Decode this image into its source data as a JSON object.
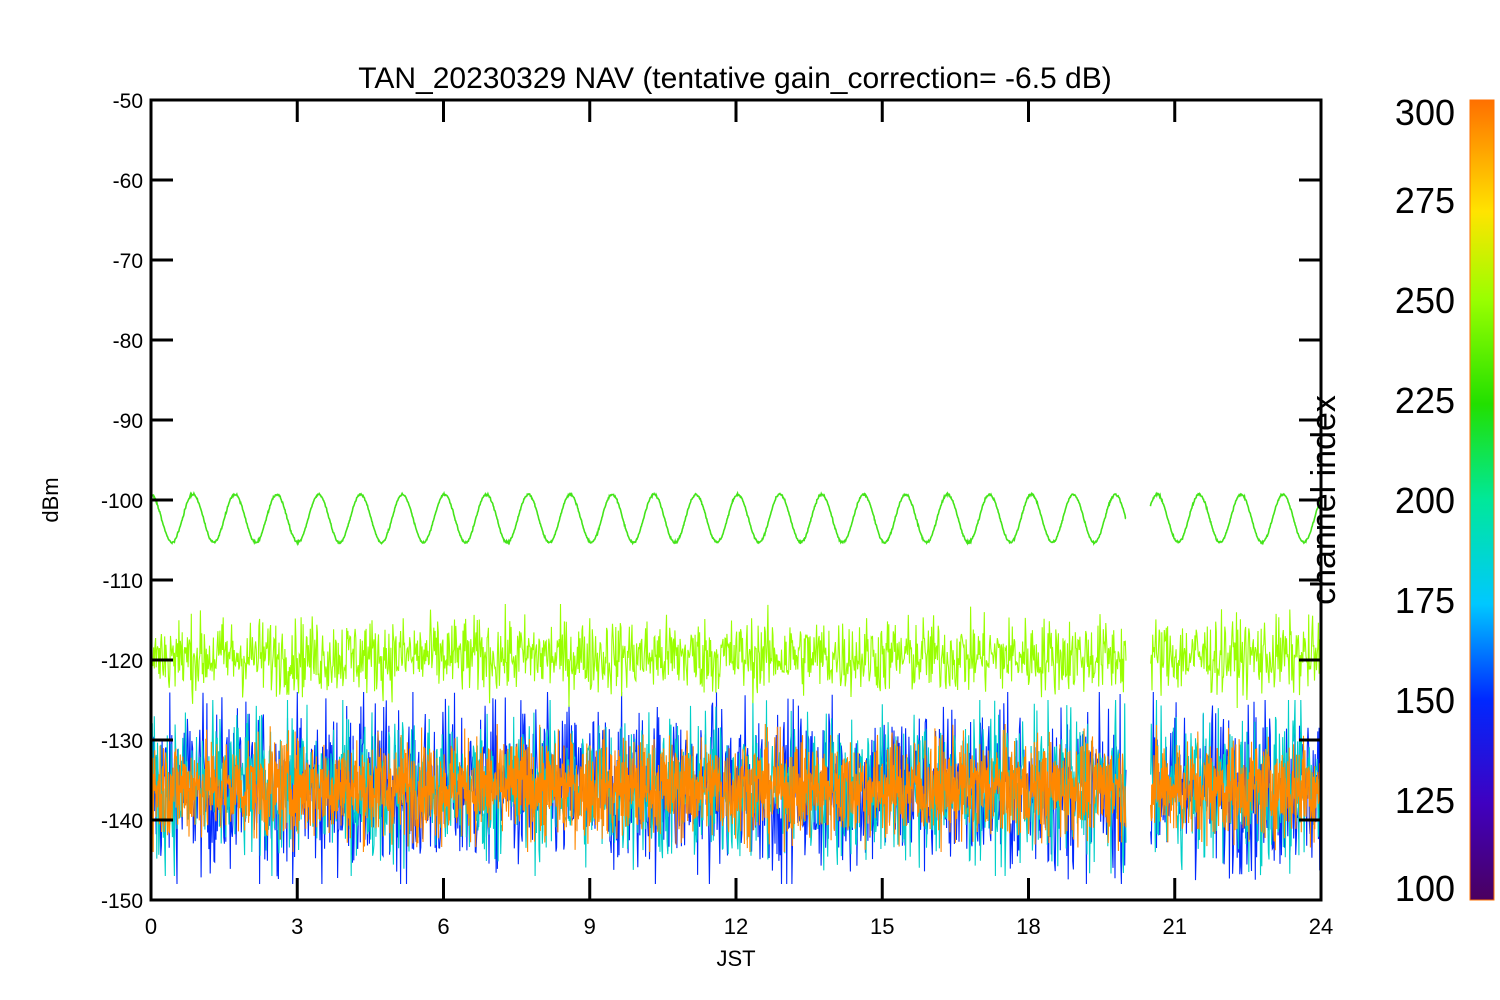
{
  "chart_data": {
    "type": "line",
    "title": "TAN_20230329 NAV (tentative gain_correction= -6.5 dB)",
    "xlabel": "JST",
    "ylabel": "dBm",
    "xlim": [
      0,
      24
    ],
    "ylim": [
      -150,
      -50
    ],
    "x_ticks": [
      "0",
      "3",
      "6",
      "9",
      "12",
      "15",
      "18",
      "21",
      "24"
    ],
    "y_ticks": [
      "-50",
      "-60",
      "-70",
      "-80",
      "-90",
      "-100",
      "-110",
      "-120",
      "-130",
      "-140",
      "-150"
    ],
    "grid": false,
    "data_gap_jst": [
      20.0,
      20.5
    ],
    "series": [
      {
        "channel_index": 230,
        "color": "#44e41a",
        "pattern": "sinusoid",
        "mean_dbm": -102.3,
        "amplitude_dbm": 3.0,
        "period_hours": 0.86
      },
      {
        "channel_index": 255,
        "color": "#99ff00",
        "pattern": "noise band",
        "mean_dbm": -119.5,
        "range_dbm": [
          -124,
          -115
        ]
      },
      {
        "channel_index": 285,
        "color": "#ff8800",
        "pattern": "noise band",
        "mean_dbm": -136,
        "range_dbm": [
          -142,
          -130
        ]
      },
      {
        "channel_index": 170,
        "color": "#00cfc8",
        "pattern": "noise band",
        "mean_dbm": -136,
        "range_dbm": [
          -145,
          -127
        ]
      },
      {
        "channel_index": 140,
        "color": "#0028ff",
        "pattern": "noise band",
        "mean_dbm": -136,
        "range_dbm": [
          -146,
          -126
        ]
      }
    ],
    "colorbar": {
      "label": "channel index",
      "range": [
        100,
        300
      ],
      "ticks": [
        "100",
        "125",
        "150",
        "175",
        "200",
        "225",
        "250",
        "275",
        "300"
      ]
    }
  }
}
